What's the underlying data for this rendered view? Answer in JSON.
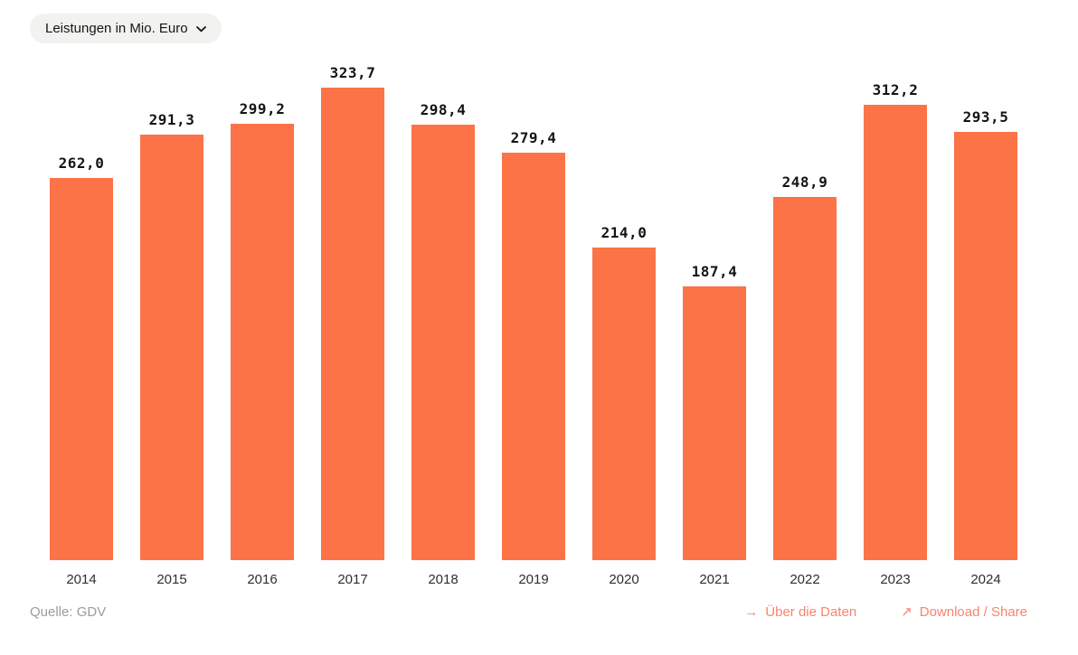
{
  "header": {
    "filter_label": "Leistungen in Mio. Euro",
    "chevron_icon": "chevron-down"
  },
  "chart_data": {
    "type": "bar",
    "title": "Leistungen in Mio. Euro",
    "xlabel": "",
    "ylabel": "Leistungen in Mio. Euro",
    "categories": [
      "2014",
      "2015",
      "2016",
      "2017",
      "2018",
      "2019",
      "2020",
      "2021",
      "2022",
      "2023",
      "2024"
    ],
    "values": [
      262.0,
      291.3,
      299.2,
      323.7,
      298.4,
      279.4,
      214.0,
      187.4,
      248.9,
      312.2,
      293.5
    ],
    "value_labels": [
      "262,0",
      "291,3",
      "299,2",
      "323,7",
      "298,4",
      "279,4",
      "214,0",
      "187,4",
      "248,9",
      "312,2",
      "293,5"
    ],
    "ylim": [
      0,
      323.7
    ],
    "grid": false,
    "legend": "none",
    "bar_color": "#fb7347"
  },
  "footer": {
    "source": "Quelle: GDV",
    "link_color": "#f9836c",
    "links": [
      {
        "icon": "arrow-right",
        "glyph": "→",
        "label": "Über die Daten"
      },
      {
        "icon": "arrow-up-right",
        "glyph": "↗",
        "label": "Download / Share"
      }
    ]
  }
}
